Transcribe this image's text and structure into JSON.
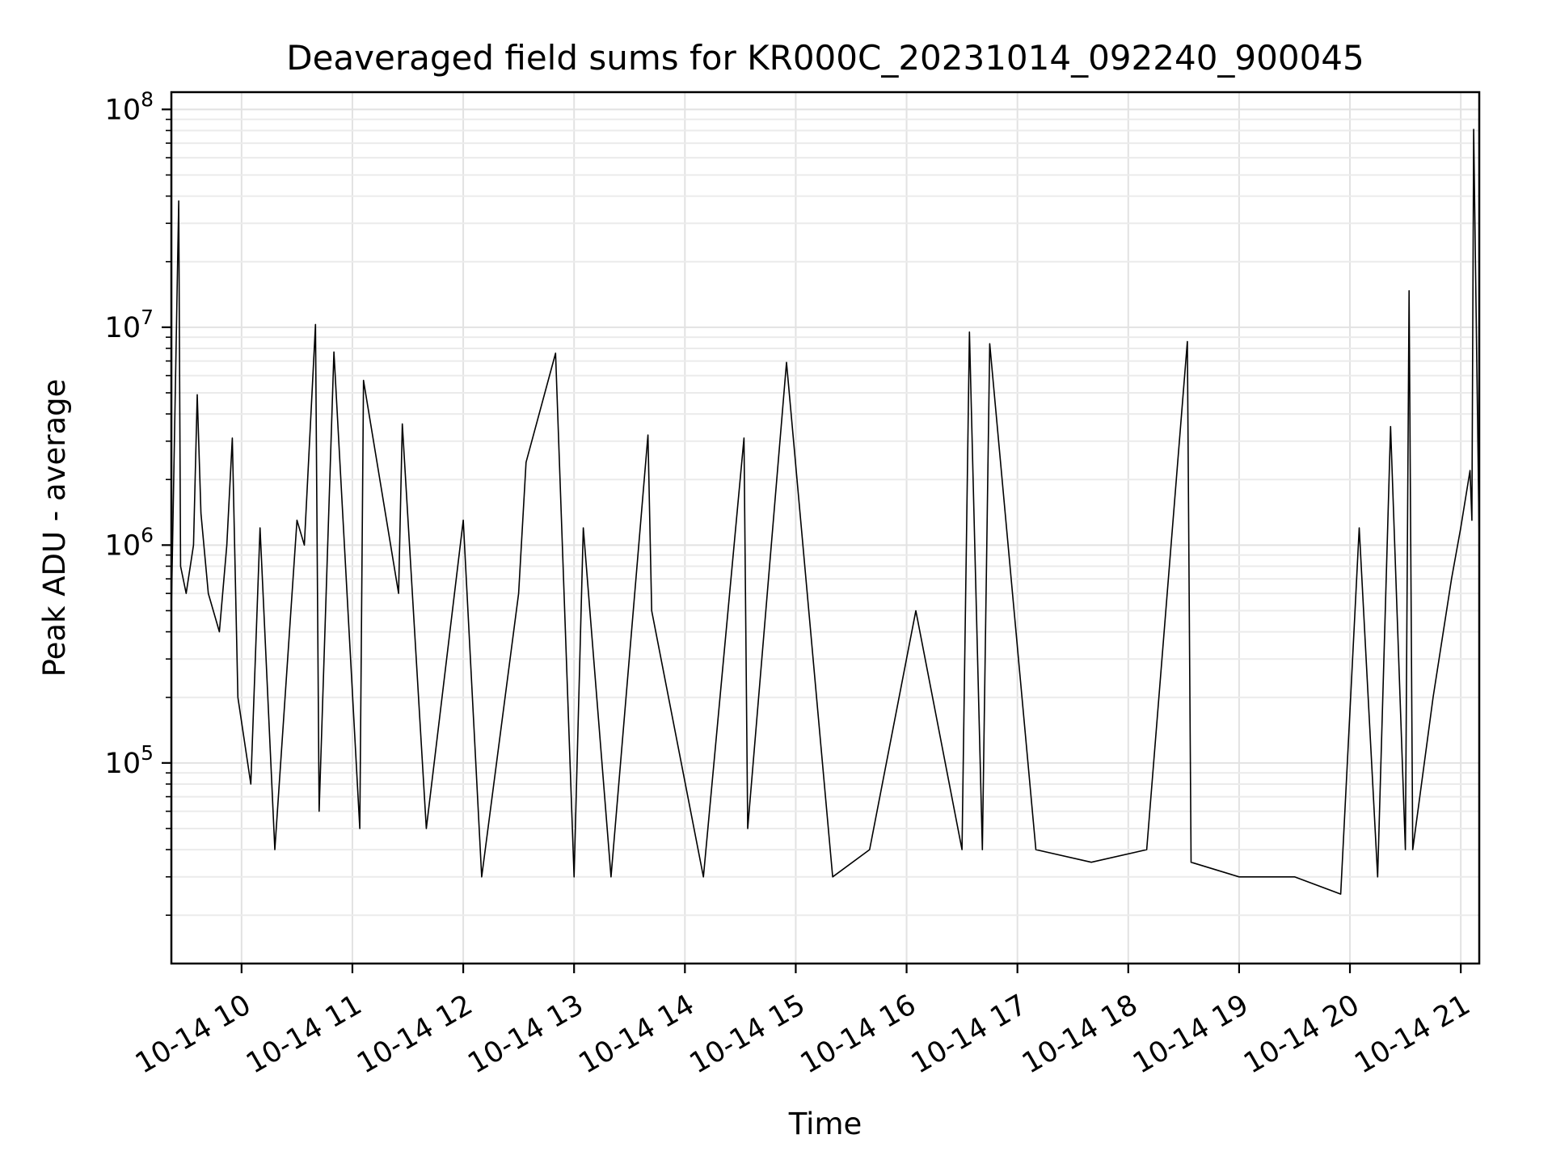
{
  "chart_data": {
    "type": "line",
    "title": "Deaveraged field sums for KR000C_20231014_092240_900045",
    "xlabel": "Time",
    "ylabel": "Peak ADU - average",
    "yscale": "log",
    "ylim": [
      12000,
      120000000
    ],
    "xlim": [
      "2023-10-14 09:22",
      "2023-10-14 21:10"
    ],
    "grid": true,
    "x_ticks": [
      "10-14 10",
      "10-14 11",
      "10-14 12",
      "10-14 13",
      "10-14 14",
      "10-14 15",
      "10-14 16",
      "10-14 17",
      "10-14 18",
      "10-14 19",
      "10-14 20",
      "10-14 21"
    ],
    "y_ticks": [
      {
        "value": 100000,
        "base": "10",
        "exp": "5"
      },
      {
        "value": 1000000,
        "base": "10",
        "exp": "6"
      },
      {
        "value": 10000000,
        "base": "10",
        "exp": "7"
      },
      {
        "value": 100000000,
        "base": "10",
        "exp": "8"
      }
    ],
    "series": [
      {
        "color": "#000000",
        "x": [
          "2023-10-14 09:22",
          "2023-10-14 09:26",
          "2023-10-14 09:27",
          "2023-10-14 09:30",
          "2023-10-14 09:34",
          "2023-10-14 09:36",
          "2023-10-14 09:38",
          "2023-10-14 09:42",
          "2023-10-14 09:48",
          "2023-10-14 09:52",
          "2023-10-14 09:55",
          "2023-10-14 09:58",
          "2023-10-14 10:05",
          "2023-10-14 10:10",
          "2023-10-14 10:18",
          "2023-10-14 10:30",
          "2023-10-14 10:34",
          "2023-10-14 10:40",
          "2023-10-14 10:42",
          "2023-10-14 10:50",
          "2023-10-14 11:04",
          "2023-10-14 11:06",
          "2023-10-14 11:25",
          "2023-10-14 11:27",
          "2023-10-14 11:40",
          "2023-10-14 12:00",
          "2023-10-14 12:10",
          "2023-10-14 12:30",
          "2023-10-14 12:34",
          "2023-10-14 12:50",
          "2023-10-14 13:00",
          "2023-10-14 13:05",
          "2023-10-14 13:20",
          "2023-10-14 13:40",
          "2023-10-14 13:42",
          "2023-10-14 14:10",
          "2023-10-14 14:32",
          "2023-10-14 14:34",
          "2023-10-14 14:55",
          "2023-10-14 15:20",
          "2023-10-14 15:40",
          "2023-10-14 16:05",
          "2023-10-14 16:30",
          "2023-10-14 16:34",
          "2023-10-14 16:41",
          "2023-10-14 16:45",
          "2023-10-14 17:10",
          "2023-10-14 17:40",
          "2023-10-14 18:10",
          "2023-10-14 18:32",
          "2023-10-14 18:34",
          "2023-10-14 19:00",
          "2023-10-14 19:30",
          "2023-10-14 19:55",
          "2023-10-14 20:05",
          "2023-10-14 20:15",
          "2023-10-14 20:22",
          "2023-10-14 20:30",
          "2023-10-14 20:32",
          "2023-10-14 20:34",
          "2023-10-14 20:45",
          "2023-10-14 20:55",
          "2023-10-14 21:00",
          "2023-10-14 21:05",
          "2023-10-14 21:06",
          "2023-10-14 21:07",
          "2023-10-14 21:10"
        ],
        "y": [
          500000,
          38000000,
          800000,
          600000,
          1000000,
          4900000,
          1400000,
          600000,
          400000,
          1000000,
          3100000,
          200000,
          80000,
          1200000,
          40000,
          1300000,
          1000000,
          10300000,
          60000,
          7700000,
          50000,
          5700000,
          600000,
          3600000,
          50000,
          1300000,
          30000,
          600000,
          2400000,
          7600000,
          30000,
          1200000,
          30000,
          3200000,
          500000,
          30000,
          3100000,
          50000,
          6900000,
          30000,
          40000,
          500000,
          40000,
          9500000,
          40000,
          8400000,
          40000,
          35000,
          40000,
          8600000,
          35000,
          30000,
          30000,
          25000,
          1200000,
          30000,
          3500000,
          40000,
          14700000,
          40000,
          200000,
          700000,
          1200000,
          2200000,
          1300000,
          81000000,
          1000000
        ]
      }
    ]
  }
}
